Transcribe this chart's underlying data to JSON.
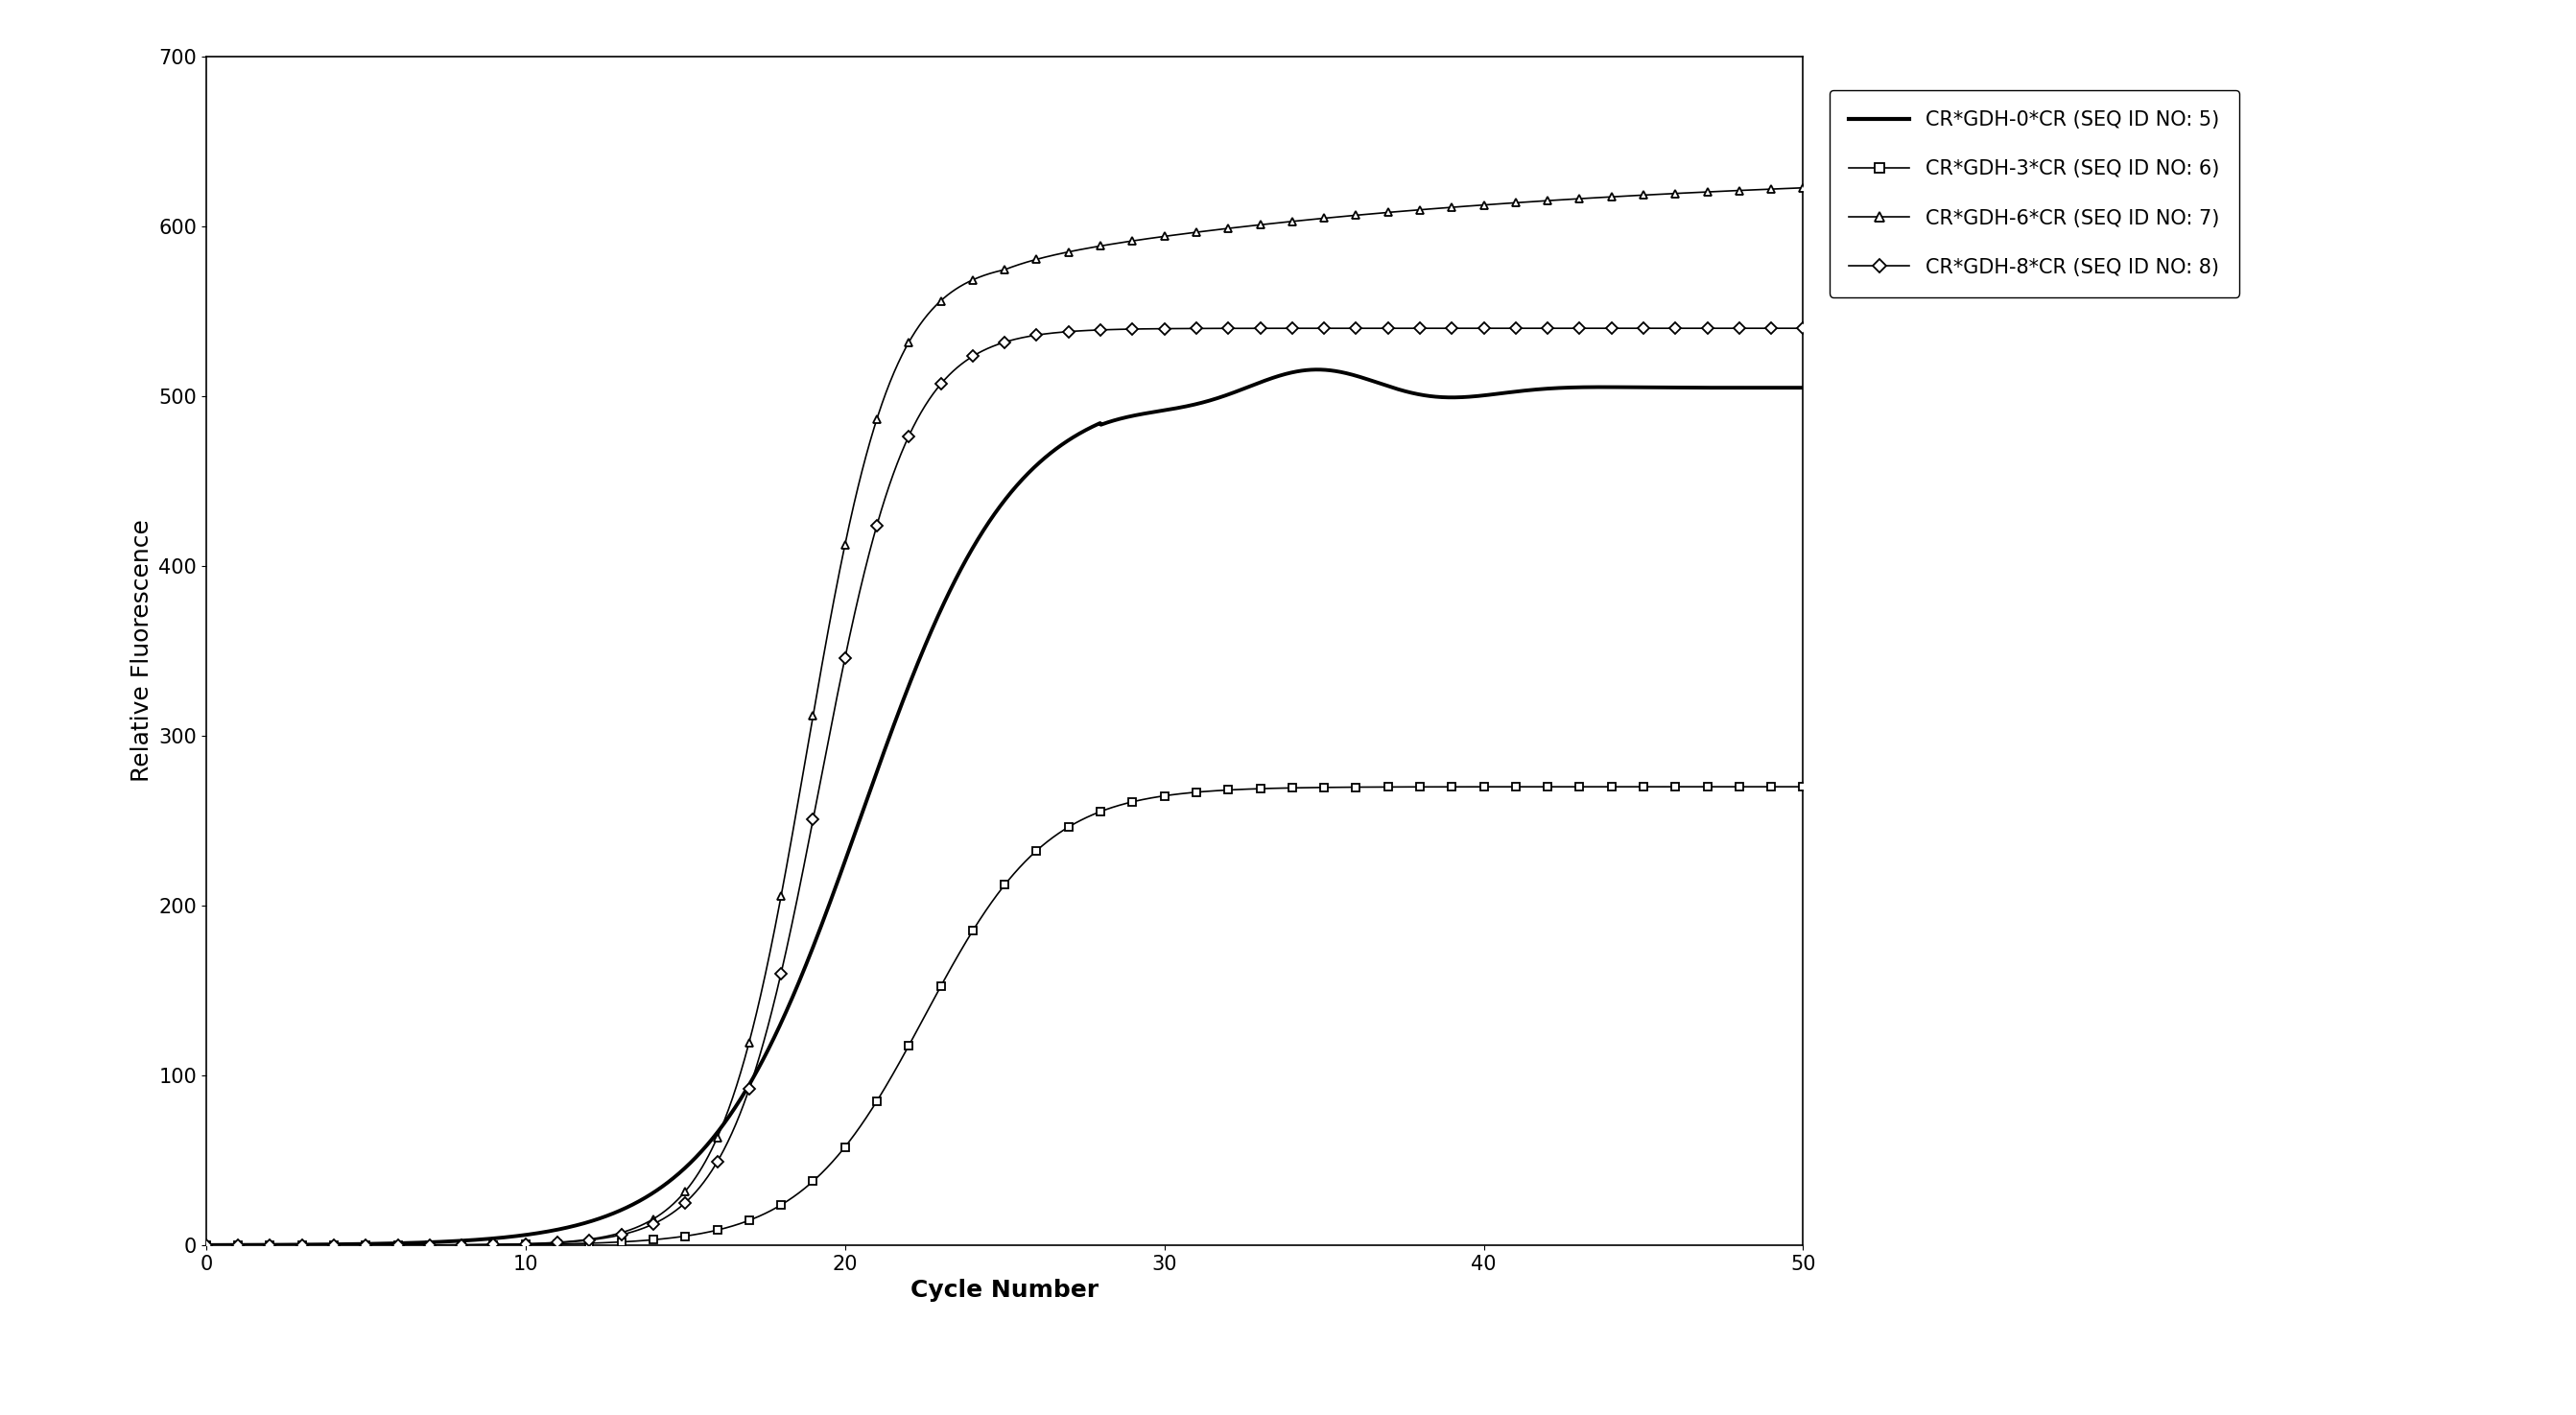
{
  "title": "",
  "xlabel": "Cycle Number",
  "ylabel": "Relative Fluorescence",
  "xlim": [
    0,
    50
  ],
  "ylim": [
    0,
    700
  ],
  "xticks": [
    0,
    10,
    20,
    30,
    40,
    50
  ],
  "yticks": [
    0,
    100,
    200,
    300,
    400,
    500,
    600,
    700
  ],
  "background_color": "#ffffff",
  "labels": [
    "CR*GDH-0*CR (SEQ ID NO: 5)",
    "CR*GDH-3*CR (SEQ ID NO: 6)",
    "CR*GDH-6*CR (SEQ ID NO: 7)",
    "CR*GDH-8*CR (SEQ ID NO: 8)"
  ],
  "legend_fontsize": 15,
  "axis_label_fontsize": 18,
  "tick_fontsize": 15
}
